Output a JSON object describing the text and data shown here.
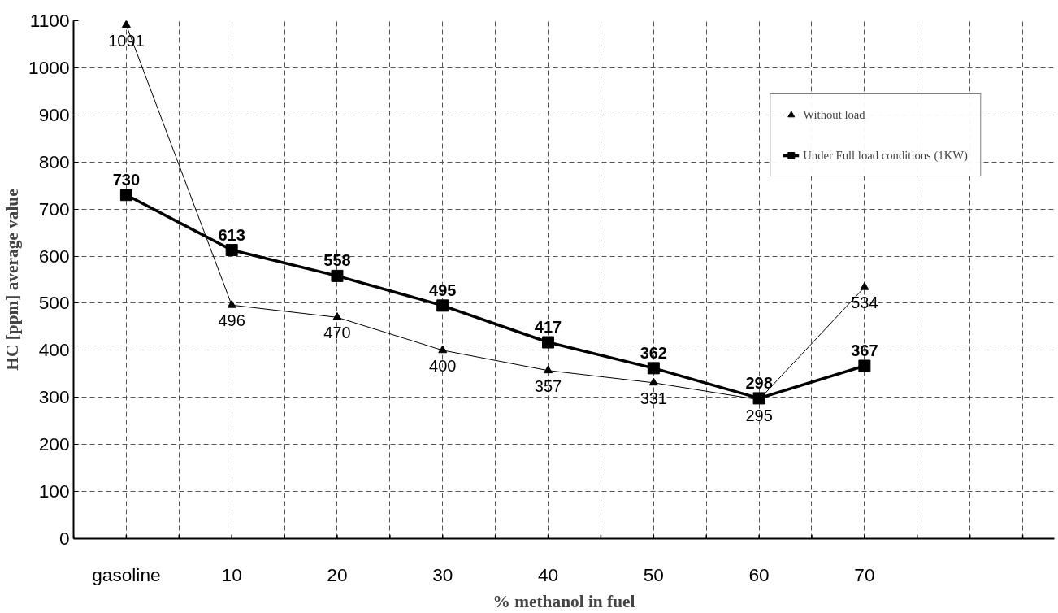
{
  "chart_data": {
    "type": "line",
    "xlabel": "% methanol in fuel",
    "ylabel": "HC [ppm] average value",
    "categories": [
      "gasoline",
      "10",
      "20",
      "30",
      "40",
      "50",
      "60",
      "70",
      null
    ],
    "series": [
      {
        "name": "Without load",
        "color": "#000000",
        "marker": "triangle",
        "values": [
          1091,
          496,
          470,
          400,
          357,
          331,
          295,
          534,
          null
        ]
      },
      {
        "name": "Under Full load conditions (1KW)",
        "color": "#000000",
        "marker": "square",
        "values": [
          730,
          613,
          558,
          495,
          417,
          362,
          298,
          367,
          null
        ]
      }
    ],
    "ylim": [
      0,
      1100
    ],
    "yticks": [
      0,
      100,
      200,
      300,
      400,
      500,
      600,
      700,
      800,
      900,
      1000,
      1100
    ],
    "grid": true,
    "legend": "top right",
    "data_labels": true,
    "line_style": "solid"
  }
}
